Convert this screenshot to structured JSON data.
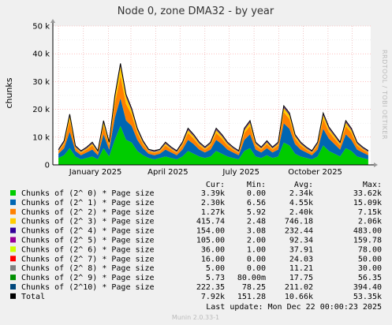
{
  "chart_data": {
    "type": "area",
    "stacked": true,
    "title": "Node 0, zone DMA32 - by year",
    "ylabel": "chunks",
    "xlabel": "",
    "ylim": [
      0,
      50000
    ],
    "yticks": [
      0,
      10000,
      20000,
      30000,
      40000,
      50000
    ],
    "ytick_labels": [
      "0",
      "10 k",
      "20 k",
      "30 k",
      "40 k",
      "50 k"
    ],
    "xtick_labels": [
      "January 2025",
      "April 2025",
      "July 2025",
      "October 2025"
    ],
    "side_label": "RRDTOOL / TOBI OETIKER",
    "grid": true,
    "x": [
      "2024-12-01",
      "2024-12-08",
      "2024-12-15",
      "2024-12-22",
      "2024-12-29",
      "2025-01-05",
      "2025-01-12",
      "2025-01-19",
      "2025-01-26",
      "2025-02-02",
      "2025-02-09",
      "2025-02-16",
      "2025-02-23",
      "2025-03-02",
      "2025-03-09",
      "2025-03-16",
      "2025-03-23",
      "2025-03-30",
      "2025-04-06",
      "2025-04-13",
      "2025-04-20",
      "2025-04-27",
      "2025-05-04",
      "2025-05-11",
      "2025-05-18",
      "2025-05-25",
      "2025-06-01",
      "2025-06-08",
      "2025-06-15",
      "2025-06-22",
      "2025-06-29",
      "2025-07-06",
      "2025-07-13",
      "2025-07-20",
      "2025-07-27",
      "2025-08-03",
      "2025-08-10",
      "2025-08-17",
      "2025-08-24",
      "2025-08-31",
      "2025-09-07",
      "2025-09-14",
      "2025-09-21",
      "2025-09-28",
      "2025-10-05",
      "2025-10-12",
      "2025-10-19",
      "2025-10-26",
      "2025-11-02",
      "2025-11-09",
      "2025-11-16",
      "2025-11-23",
      "2025-11-30",
      "2025-12-07",
      "2025-12-14",
      "2025-12-21"
    ],
    "series": [
      {
        "name": "Chunks of (2^ 0) * Page size",
        "color": "#00cc00",
        "values": [
          2500,
          3500,
          6000,
          3000,
          2000,
          2500,
          3000,
          2000,
          6000,
          3000,
          9000,
          14000,
          9000,
          8000,
          5000,
          3500,
          2500,
          2000,
          2500,
          3000,
          2500,
          2000,
          3000,
          5000,
          4000,
          3000,
          2500,
          3000,
          5000,
          4000,
          3000,
          2500,
          2000,
          5000,
          6000,
          3000,
          2500,
          3500,
          2500,
          3000,
          8000,
          7000,
          4000,
          3000,
          2500,
          2000,
          3000,
          7000,
          5000,
          4000,
          3000,
          6000,
          5000,
          3000,
          2500,
          2000
        ]
      },
      {
        "name": "Chunks of (2^ 1) * Page size",
        "color": "#0066b3",
        "values": [
          1500,
          2500,
          6000,
          2000,
          1500,
          2000,
          2500,
          1500,
          5000,
          2500,
          8000,
          10000,
          7000,
          6000,
          4000,
          2500,
          1500,
          1500,
          1500,
          2500,
          2000,
          1500,
          2500,
          4000,
          3500,
          2500,
          2000,
          2500,
          4000,
          3500,
          2500,
          2000,
          1500,
          4000,
          5000,
          2500,
          2000,
          2500,
          2000,
          2500,
          7000,
          6000,
          3500,
          2500,
          2000,
          1500,
          2500,
          6000,
          4500,
          3500,
          2500,
          5000,
          4000,
          2500,
          2000,
          1500
        ]
      },
      {
        "name": "Chunks of (2^ 2) * Page size",
        "color": "#ff8000",
        "values": [
          700,
          1500,
          4000,
          1000,
          800,
          1000,
          1500,
          800,
          3000,
          1500,
          5000,
          8000,
          6000,
          4000,
          2500,
          1500,
          800,
          800,
          800,
          1500,
          1000,
          800,
          1500,
          2500,
          2000,
          1500,
          1000,
          1500,
          2500,
          2000,
          1500,
          1000,
          800,
          2500,
          3000,
          1500,
          1000,
          1500,
          1000,
          1500,
          4000,
          3500,
          2000,
          1500,
          1000,
          800,
          1500,
          3500,
          2500,
          2000,
          1500,
          3000,
          2500,
          1500,
          1000,
          800
        ]
      },
      {
        "name": "Chunks of (2^ 3) * Page size",
        "color": "#ffcc00",
        "values": [
          300,
          600,
          1500,
          400,
          300,
          400,
          600,
          300,
          1200,
          600,
          2000,
          3500,
          2500,
          1500,
          1000,
          600,
          300,
          300,
          300,
          600,
          400,
          300,
          600,
          1000,
          800,
          600,
          400,
          600,
          1000,
          800,
          600,
          400,
          300,
          1000,
          1200,
          600,
          400,
          600,
          400,
          600,
          1500,
          1400,
          800,
          600,
          400,
          300,
          600,
          1400,
          1000,
          800,
          600,
          1200,
          1000,
          600,
          400,
          300
        ]
      },
      {
        "name": "Chunks of (2^ 4) * Page size",
        "color": "#330099",
        "values": [
          150,
          200,
          300,
          150,
          120,
          150,
          200,
          120,
          250,
          200,
          350,
          450,
          350,
          300,
          250,
          200,
          150,
          150,
          150,
          200,
          150,
          150,
          200,
          250,
          220,
          200,
          150,
          200,
          250,
          220,
          200,
          150,
          150,
          250,
          280,
          200,
          150,
          200,
          150,
          200,
          300,
          300,
          220,
          200,
          150,
          150,
          200,
          300,
          250,
          220,
          200,
          280,
          250,
          200,
          150,
          150
        ]
      },
      {
        "name": "Chunks of (2^ 5) * Page size",
        "color": "#990099",
        "values": [
          100,
          110,
          140,
          100,
          90,
          100,
          110,
          90,
          130,
          110,
          150,
          160,
          150,
          130,
          120,
          110,
          100,
          100,
          100,
          110,
          100,
          100,
          110,
          120,
          115,
          110,
          100,
          110,
          120,
          115,
          110,
          100,
          100,
          120,
          125,
          110,
          100,
          110,
          100,
          110,
          130,
          130,
          115,
          110,
          100,
          100,
          110,
          130,
          120,
          115,
          110,
          125,
          120,
          110,
          100,
          100
        ]
      },
      {
        "name": "Chunks of (2^ 6) * Page size",
        "color": "#ccff00",
        "values": [
          36,
          38,
          40,
          36,
          34,
          36,
          38,
          34,
          40,
          38,
          44,
          48,
          44,
          40,
          40,
          38,
          36,
          36,
          36,
          38,
          36,
          36,
          38,
          40,
          40,
          38,
          36,
          38,
          40,
          40,
          38,
          36,
          36,
          40,
          42,
          38,
          36,
          38,
          36,
          38,
          44,
          44,
          40,
          38,
          36,
          36,
          38,
          44,
          40,
          40,
          38,
          42,
          40,
          38,
          36,
          36
        ]
      },
      {
        "name": "Chunks of (2^ 7) * Page size",
        "color": "#ff0000",
        "values": [
          20,
          22,
          28,
          20,
          18,
          20,
          22,
          18,
          26,
          22,
          30,
          34,
          30,
          28,
          26,
          22,
          20,
          20,
          20,
          22,
          20,
          20,
          22,
          26,
          24,
          22,
          20,
          22,
          26,
          24,
          22,
          20,
          20,
          26,
          28,
          22,
          20,
          22,
          20,
          22,
          30,
          30,
          24,
          22,
          20,
          20,
          22,
          30,
          26,
          24,
          22,
          28,
          26,
          22,
          20,
          16
        ]
      },
      {
        "name": "Chunks of (2^ 8) * Page size",
        "color": "#808080",
        "values": [
          8,
          9,
          12,
          8,
          7,
          8,
          9,
          7,
          11,
          9,
          14,
          16,
          14,
          12,
          11,
          9,
          8,
          8,
          8,
          9,
          8,
          8,
          9,
          11,
          10,
          9,
          8,
          9,
          11,
          10,
          9,
          8,
          8,
          11,
          12,
          9,
          8,
          9,
          8,
          9,
          13,
          13,
          10,
          9,
          8,
          8,
          9,
          13,
          11,
          10,
          9,
          12,
          11,
          9,
          8,
          5
        ]
      },
      {
        "name": "Chunks of (2^ 9) * Page size",
        "color": "#008f00",
        "values": [
          12,
          14,
          20,
          12,
          10,
          12,
          14,
          10,
          18,
          14,
          24,
          28,
          24,
          20,
          18,
          14,
          12,
          12,
          12,
          14,
          12,
          12,
          14,
          18,
          16,
          14,
          12,
          14,
          18,
          16,
          14,
          12,
          12,
          18,
          20,
          14,
          12,
          14,
          12,
          14,
          22,
          22,
          16,
          14,
          12,
          12,
          14,
          22,
          18,
          16,
          14,
          20,
          18,
          14,
          12,
          6
        ]
      },
      {
        "name": "Chunks of (2^10) * Page size",
        "color": "#00487d",
        "values": [
          180,
          190,
          230,
          190,
          170,
          180,
          190,
          170,
          220,
          190,
          250,
          300,
          260,
          240,
          220,
          200,
          190,
          190,
          190,
          200,
          190,
          190,
          200,
          220,
          210,
          200,
          190,
          200,
          220,
          210,
          200,
          190,
          190,
          220,
          230,
          200,
          190,
          200,
          190,
          200,
          240,
          240,
          210,
          200,
          190,
          190,
          200,
          240,
          220,
          210,
          200,
          230,
          220,
          200,
          190,
          222
        ]
      }
    ],
    "total_line": {
      "name": "Total",
      "color": "#000000"
    },
    "legend_columns": [
      "Cur:",
      "Min:",
      "Avg:",
      "Max:"
    ],
    "legend": [
      {
        "name": "Chunks of (2^ 0) * Page size",
        "color": "#00cc00",
        "cur": "3.39k",
        "min": "0.00",
        "avg": "2.34k",
        "max": "33.62k"
      },
      {
        "name": "Chunks of (2^ 1) * Page size",
        "color": "#0066b3",
        "cur": "2.30k",
        "min": "6.56",
        "avg": "4.55k",
        "max": "15.09k"
      },
      {
        "name": "Chunks of (2^ 2) * Page size",
        "color": "#ff8000",
        "cur": "1.27k",
        "min": "5.92",
        "avg": "2.40k",
        "max": "7.15k"
      },
      {
        "name": "Chunks of (2^ 3) * Page size",
        "color": "#ffcc00",
        "cur": "415.74",
        "min": "2.48",
        "avg": "746.18",
        "max": "2.06k"
      },
      {
        "name": "Chunks of (2^ 4) * Page size",
        "color": "#330099",
        "cur": "154.00",
        "min": "3.08",
        "avg": "232.44",
        "max": "483.00"
      },
      {
        "name": "Chunks of (2^ 5) * Page size",
        "color": "#990099",
        "cur": "105.00",
        "min": "2.00",
        "avg": "92.34",
        "max": "159.78"
      },
      {
        "name": "Chunks of (2^ 6) * Page size",
        "color": "#ccff00",
        "cur": "36.00",
        "min": "1.00",
        "avg": "37.91",
        "max": "78.00"
      },
      {
        "name": "Chunks of (2^ 7) * Page size",
        "color": "#ff0000",
        "cur": "16.00",
        "min": "0.00",
        "avg": "24.03",
        "max": "50.00"
      },
      {
        "name": "Chunks of (2^ 8) * Page size",
        "color": "#808080",
        "cur": "5.00",
        "min": "0.00",
        "avg": "11.21",
        "max": "30.00"
      },
      {
        "name": "Chunks of (2^ 9) * Page size",
        "color": "#008f00",
        "cur": "5.73",
        "min": "80.00m",
        "avg": "17.75",
        "max": "56.35"
      },
      {
        "name": "Chunks of (2^10) * Page size",
        "color": "#00487d",
        "cur": "222.35",
        "min": "78.25",
        "avg": "211.02",
        "max": "394.40"
      },
      {
        "name": "Total",
        "color": "#000000",
        "cur": "7.92k",
        "min": "151.28",
        "avg": "10.66k",
        "max": "53.35k"
      }
    ],
    "last_update": "Last update:  Mon Dec 22 00:00:23 2025",
    "footer": "Munin 2.0.33-1"
  }
}
